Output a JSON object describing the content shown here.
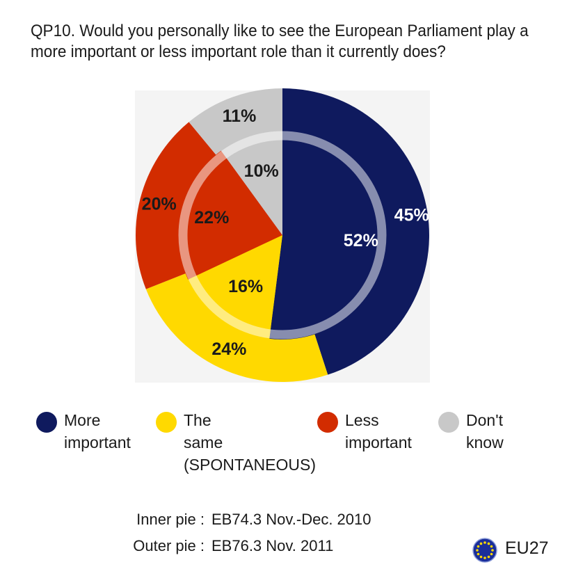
{
  "title_lines": [
    "QP10. Would you personally like to see the European Parliament play a",
    "more important or less important role than it currently does?"
  ],
  "chart_data": {
    "type": "pie",
    "variant": "concentric-donut",
    "categories": [
      "More important",
      "The same (SPONTANEOUS)",
      "Less important",
      "Don't know"
    ],
    "colors": [
      "#0f1a5e",
      "#ffd900",
      "#d22c00",
      "#c8c8c8"
    ],
    "series": [
      {
        "name": "Inner pie",
        "values": [
          52,
          16,
          22,
          10
        ]
      },
      {
        "name": "Outer pie",
        "values": [
          45,
          24,
          20,
          11
        ]
      }
    ],
    "labels": {
      "inner": [
        "52%",
        "16%",
        "22%",
        "10%"
      ],
      "outer": [
        "45%",
        "24%",
        "20%",
        "11%"
      ]
    }
  },
  "legend": [
    {
      "lines": [
        "More",
        "important"
      ],
      "color": "#0f1a5e"
    },
    {
      "lines": [
        "The",
        "same",
        "(SPONTANEOUS)"
      ],
      "color": "#ffd900"
    },
    {
      "lines": [
        "Less",
        "important"
      ],
      "color": "#d22c00"
    },
    {
      "lines": [
        "Don't",
        "know"
      ],
      "color": "#c8c8c8"
    }
  ],
  "source": {
    "inner_label": "Inner pie :",
    "inner_value": "EB74.3 Nov.-Dec. 2010",
    "outer_label": "Outer pie :",
    "outer_value": "EB76.3 Nov. 2011"
  },
  "badge": {
    "icon": "eu-flag-icon",
    "label": "EU27"
  }
}
